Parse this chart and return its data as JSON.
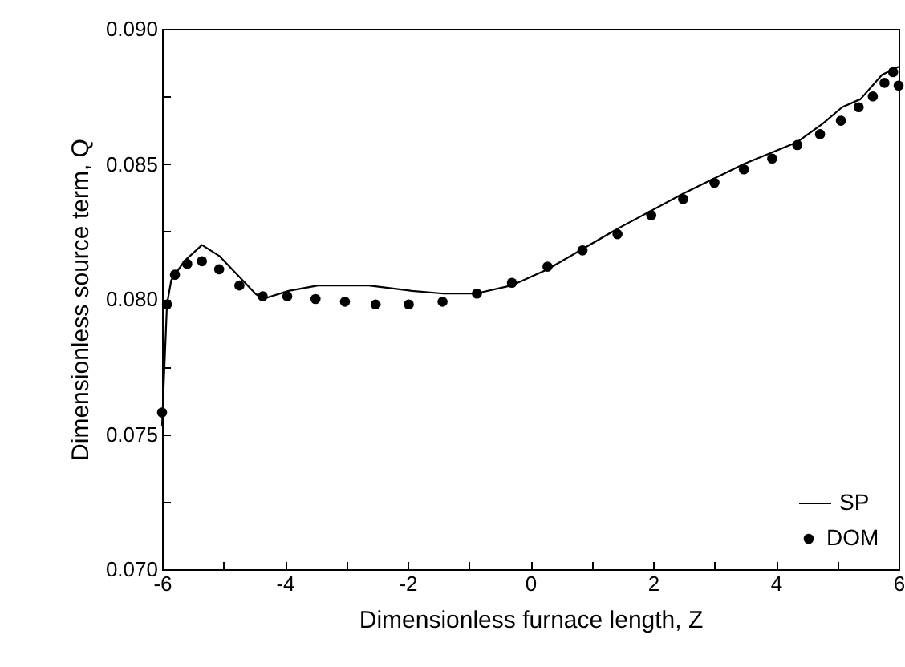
{
  "chart_data": {
    "type": "line",
    "xlabel": "Dimensionless furnace length, Z",
    "ylabel": "Dimensionless source term, Q",
    "xlim": [
      -6,
      6
    ],
    "ylim": [
      0.07,
      0.09
    ],
    "xticks": [
      -6,
      {
        "value": -5,
        "label": null
      },
      -4,
      {
        "value": -3,
        "label": null
      },
      -2,
      {
        "value": -1,
        "label": null
      },
      0,
      {
        "value": 1,
        "label": null
      },
      2,
      {
        "value": 3,
        "label": null
      },
      4,
      {
        "value": 5,
        "label": null
      },
      6
    ],
    "yticks": [
      {
        "value": 0.07,
        "label": "0.070"
      },
      {
        "value": 0.0725,
        "label": null
      },
      {
        "value": 0.075,
        "label": "0.075"
      },
      {
        "value": 0.0775,
        "label": null
      },
      {
        "value": 0.08,
        "label": "0.080"
      },
      {
        "value": 0.0825,
        "label": null
      },
      {
        "value": 0.085,
        "label": "0.085"
      },
      {
        "value": 0.0875,
        "label": null
      },
      {
        "value": 0.09,
        "label": "0.090"
      }
    ],
    "grid": false,
    "legend": "bottom right",
    "series": [
      {
        "name": "SP",
        "type": "line",
        "color": "#000000",
        "marker": "none",
        "line_style": "solid",
        "x": [
          -6.0,
          -5.92,
          -5.85,
          -5.64,
          -5.35,
          -5.07,
          -4.48,
          -4.36,
          -3.94,
          -3.46,
          -2.63,
          -1.93,
          -1.41,
          -0.89,
          -0.31,
          0.28,
          1.42,
          2.49,
          3.48,
          4.34,
          4.77,
          5.08,
          5.38,
          5.73,
          6.0
        ],
        "values": [
          0.0753,
          0.0798,
          0.0807,
          0.0814,
          0.082,
          0.0816,
          0.0802,
          0.08,
          0.0803,
          0.0805,
          0.0805,
          0.0803,
          0.0802,
          0.0802,
          0.0805,
          0.0811,
          0.0826,
          0.0839,
          0.085,
          0.0858,
          0.0865,
          0.0871,
          0.0874,
          0.0883,
          0.0886
        ]
      },
      {
        "name": "DOM",
        "type": "scatter",
        "color": "#000000",
        "marker": "circle",
        "x": [
          -6.0,
          -5.92,
          -5.79,
          -5.59,
          -5.35,
          -5.07,
          -4.74,
          -4.36,
          -3.96,
          -3.5,
          -3.02,
          -2.52,
          -1.98,
          -1.43,
          -0.87,
          -0.3,
          0.28,
          0.85,
          1.42,
          1.97,
          2.49,
          3.0,
          3.48,
          3.94,
          4.35,
          4.72,
          5.06,
          5.35,
          5.58,
          5.77,
          5.91,
          6.0
        ],
        "values": [
          0.0758,
          0.0798,
          0.0809,
          0.0813,
          0.0814,
          0.0811,
          0.0805,
          0.0801,
          0.0801,
          0.08,
          0.0799,
          0.0798,
          0.0798,
          0.0799,
          0.0802,
          0.0806,
          0.0812,
          0.0818,
          0.0824,
          0.0831,
          0.0837,
          0.0843,
          0.0848,
          0.0852,
          0.0857,
          0.0861,
          0.0866,
          0.0871,
          0.0875,
          0.088,
          0.0884,
          0.0879
        ]
      }
    ]
  }
}
